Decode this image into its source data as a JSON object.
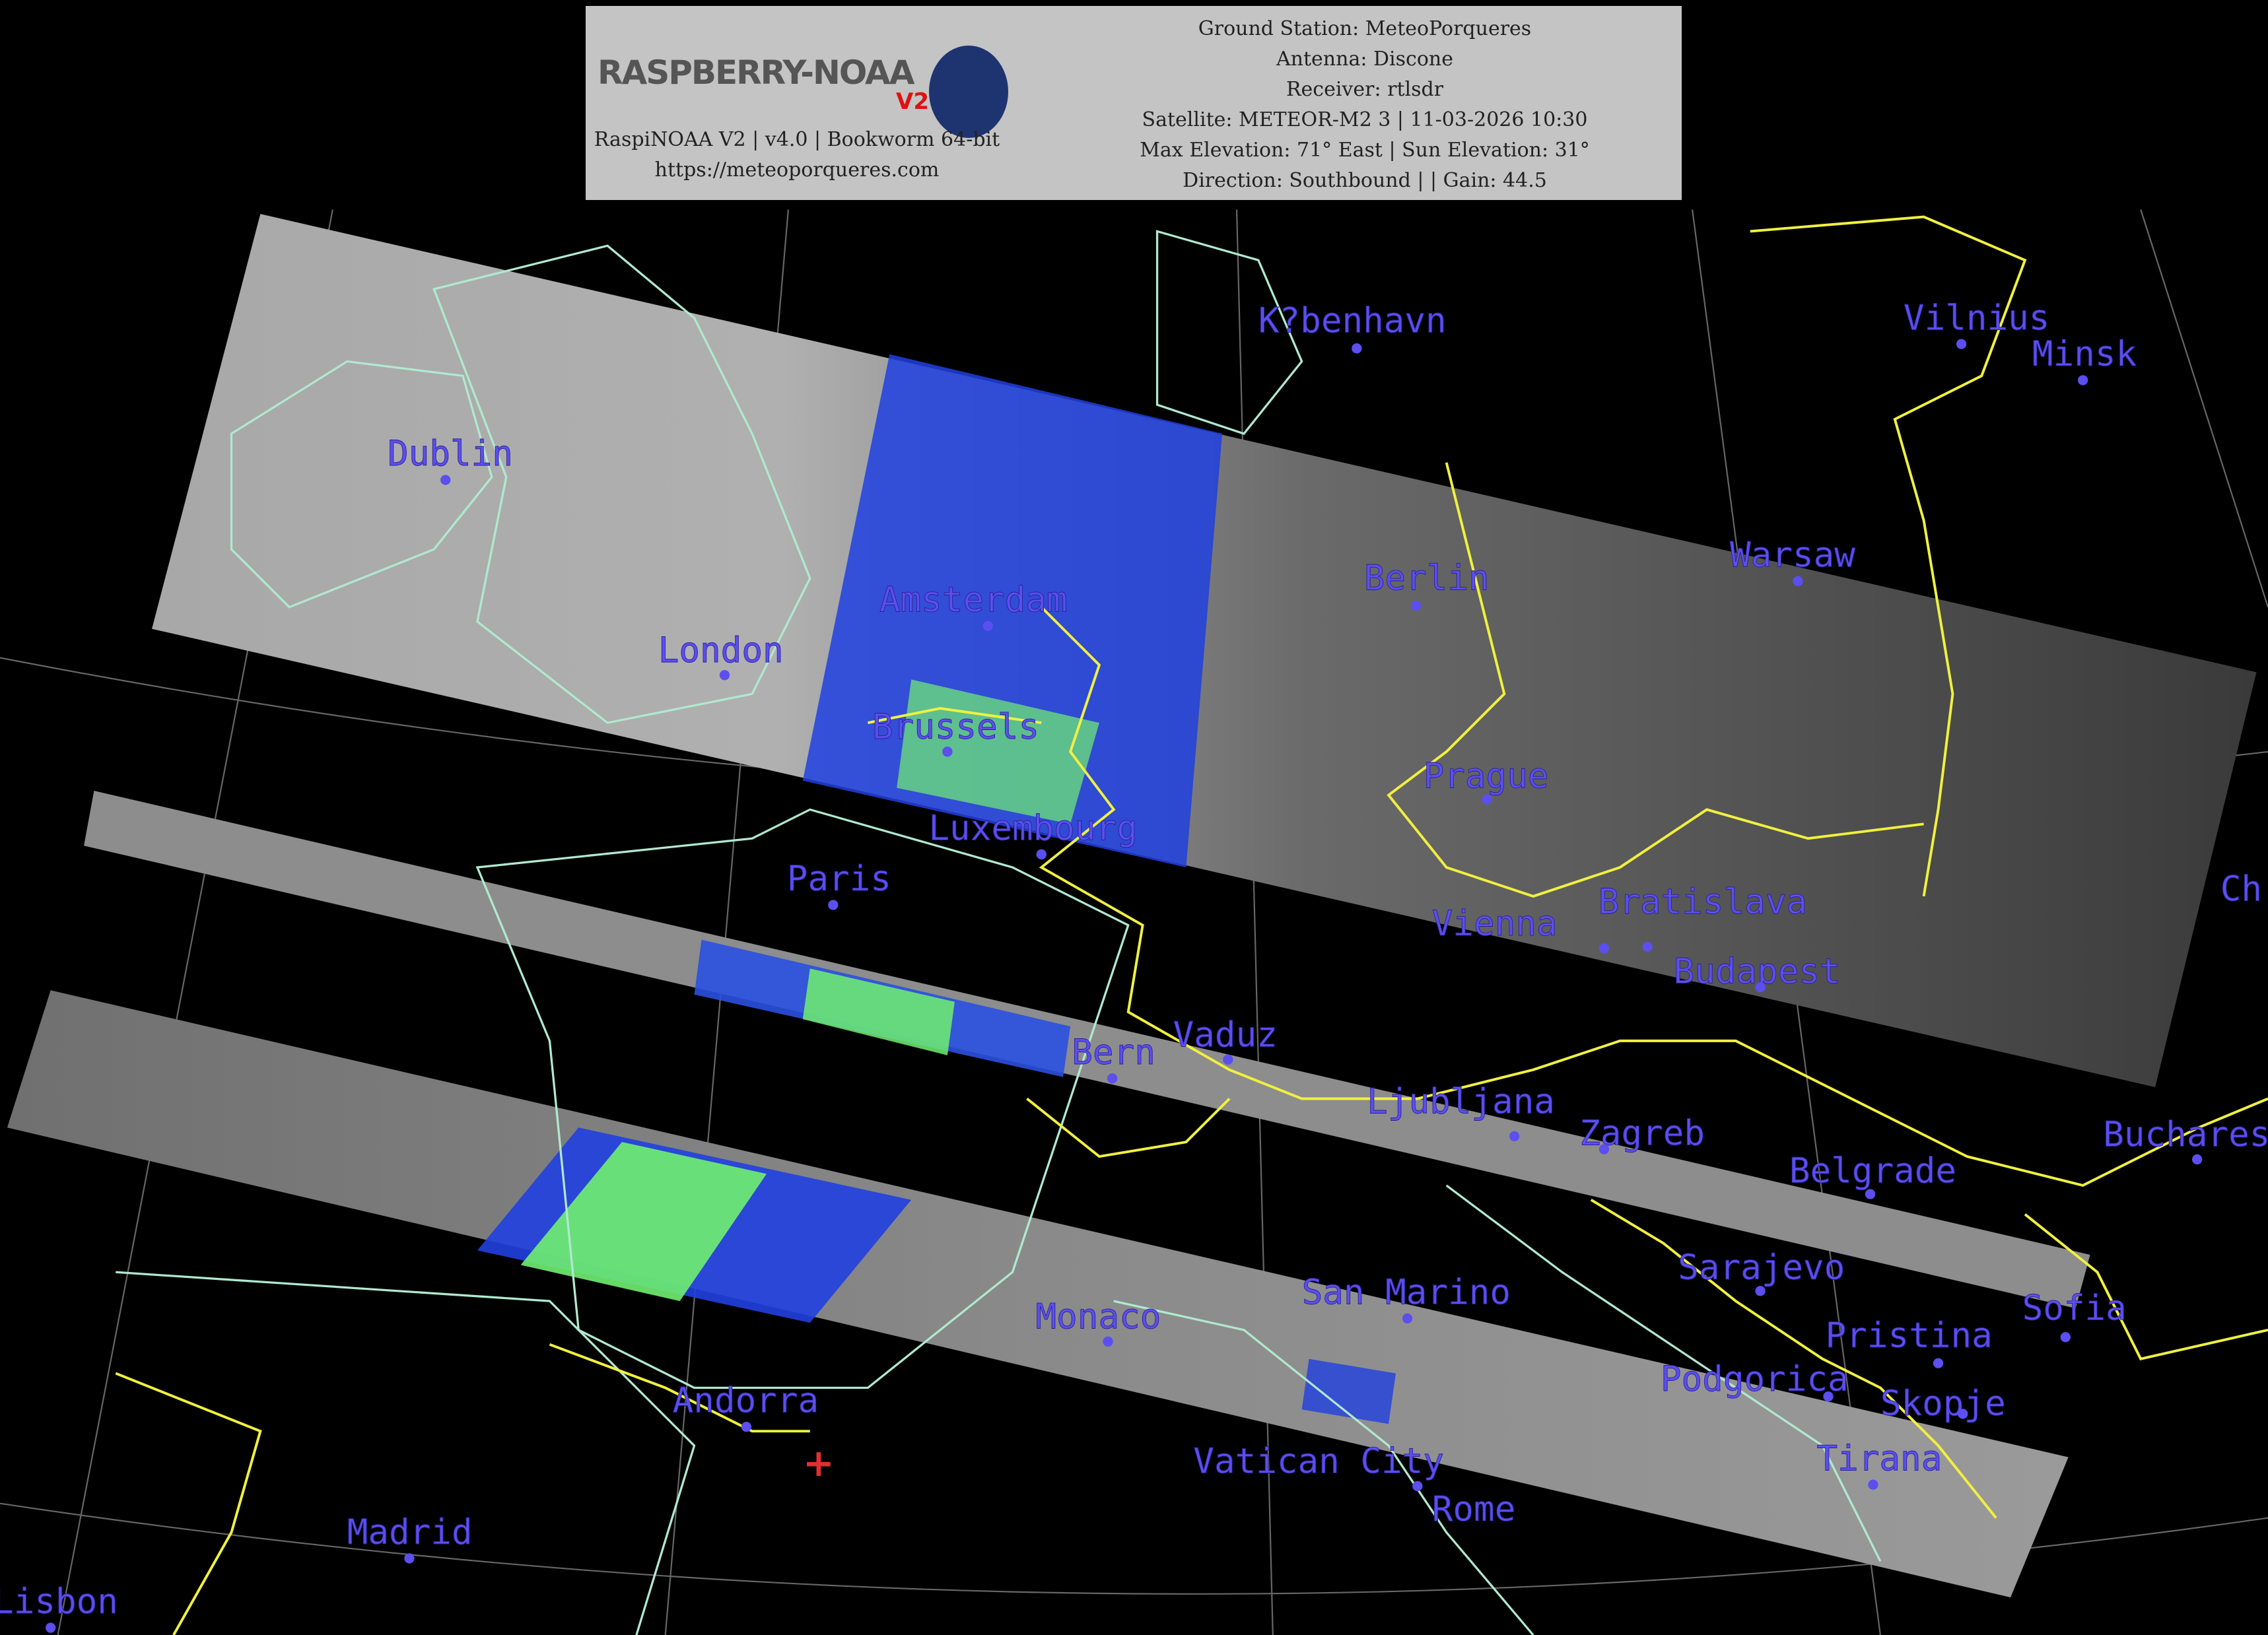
{
  "header": {
    "logo_text": "RASPBERRY-NOAA",
    "logo_badge": "V2",
    "software": "RaspiNOAA V2 | v4.0 | Bookworm 64-bit",
    "website": "https://meteoporqueres.com",
    "ground_station": "Ground Station: MeteoPorqueres",
    "antenna": "Antenna: Discone",
    "receiver": "Receiver: rtlsdr",
    "satellite": "Satellite: METEOR-M2 3 | 11-03-2026 10:30",
    "elevation": "Max Elevation: 71° East | Sun Elevation: 31°",
    "direction": "Direction: Southbound | | Gain: 44.5"
  },
  "map": {
    "cities": [
      "K?benhavn",
      "Vilnius",
      "Minsk",
      "Dublin",
      "Berlin",
      "Warsaw",
      "Amsterdam",
      "London",
      "Brussels",
      "Prague",
      "Luxembourg",
      "Paris",
      "Ch",
      "Vienna",
      "Bratislava",
      "Budapest",
      "Vaduz",
      "Bern",
      "Ljubljana",
      "Zagreb",
      "Bucharest",
      "Belgrade",
      "Sarajevo",
      "San Marino",
      "Monaco",
      "Sofia",
      "Pristina",
      "Podgorica",
      "Skopje",
      "Andorra",
      "Tirana",
      "Vatican City",
      "Rome",
      "Madrid",
      "Lisbon"
    ],
    "ground_station_marker": "+",
    "colors": {
      "label": "#5b4ff0",
      "borders": "#f0f040",
      "coastline": "#b0e8d0",
      "marker": "#e03030",
      "header_bg": "#c4c4c4"
    }
  }
}
